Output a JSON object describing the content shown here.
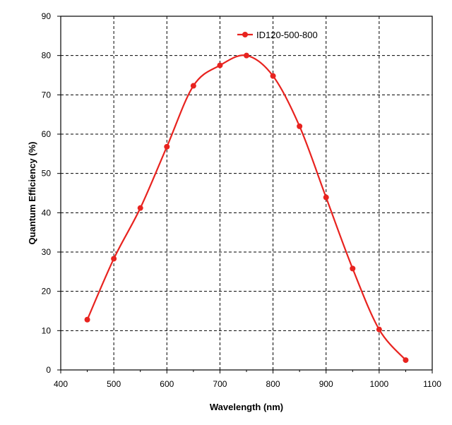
{
  "chart_data": {
    "type": "line",
    "title": "",
    "xlabel": "Wavelength (nm)",
    "ylabel": "Quantum Efficiency (%)",
    "xlim": [
      400,
      1100
    ],
    "ylim": [
      0,
      90
    ],
    "xticks": [
      400,
      500,
      600,
      700,
      800,
      900,
      1000,
      1100
    ],
    "yticks": [
      0,
      10,
      20,
      30,
      40,
      50,
      60,
      70,
      80,
      90
    ],
    "grid": true,
    "legend_position": "top-center",
    "series": [
      {
        "name": "ID120-500-800",
        "color": "#e8231f",
        "x": [
          450,
          500,
          550,
          600,
          650,
          700,
          750,
          800,
          850,
          900,
          950,
          1000,
          1050
        ],
        "y": [
          12.8,
          28.3,
          41.2,
          56.8,
          72.3,
          77.5,
          80.0,
          74.8,
          62.0,
          43.9,
          25.8,
          10.3,
          2.5
        ]
      }
    ]
  }
}
